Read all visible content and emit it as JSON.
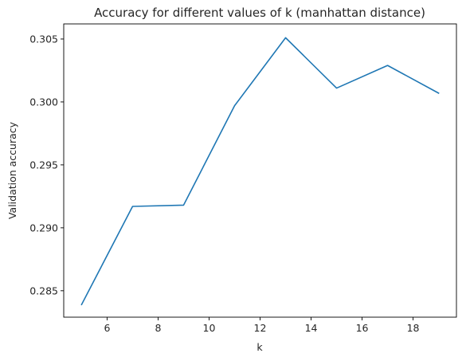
{
  "chart_data": {
    "type": "line",
    "title": "Accuracy for different values of k (manhattan distance)",
    "xlabel": "k",
    "ylabel": "Validation accuracy",
    "x": [
      5,
      7,
      9,
      11,
      13,
      15,
      17,
      19
    ],
    "series": [
      {
        "values": [
          0.2839,
          0.2917,
          0.2918,
          0.2997,
          0.3051,
          0.3011,
          0.3029,
          0.3007
        ],
        "color": "#1f77b4"
      }
    ],
    "xlim": [
      4.3,
      19.7
    ],
    "ylim": [
      0.2829,
      0.3062
    ],
    "xticks": [
      6,
      8,
      10,
      12,
      14,
      16,
      18
    ],
    "xtick_labels": [
      "6",
      "8",
      "10",
      "12",
      "14",
      "16",
      "18"
    ],
    "yticks": [
      0.285,
      0.29,
      0.295,
      0.3,
      0.305
    ],
    "ytick_labels": [
      "0.285",
      "0.290",
      "0.295",
      "0.300",
      "0.305"
    ],
    "grid": false,
    "legend": false
  }
}
